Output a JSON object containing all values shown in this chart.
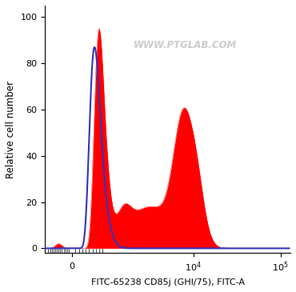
{
  "title": "",
  "xlabel": "FITC-65238 CD85j (GHI/75), FITC-A",
  "ylabel": "Relative cell number",
  "watermark": "WWW.PTGLAB.COM",
  "ylim": [
    -2,
    105
  ],
  "yticks": [
    0,
    20,
    40,
    60,
    80,
    100
  ],
  "background_color": "#ffffff",
  "red_fill_color": "#ff0000",
  "blue_line_color": "#3333bb",
  "watermark_color": "#cccccc",
  "linthresh": 1000,
  "linscale": 0.35
}
